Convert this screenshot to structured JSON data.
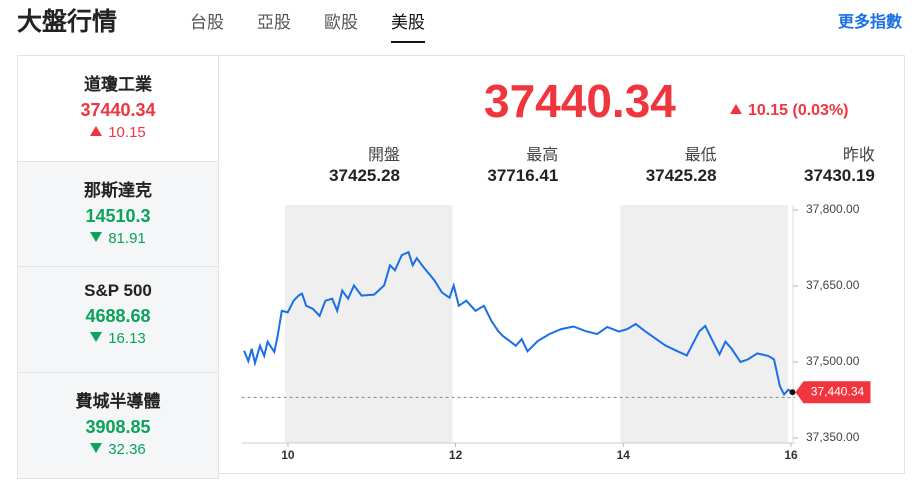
{
  "header": {
    "title": "大盤行情",
    "tabs": [
      "台股",
      "亞股",
      "歐股",
      "美股"
    ],
    "active_tab": 3,
    "more_link": "更多指數"
  },
  "colors": {
    "up": "#f0353e",
    "down": "#0aa35a"
  },
  "indices": [
    {
      "name": "道瓊工業",
      "value": 37440.34,
      "change": 10.15,
      "direction": "up"
    },
    {
      "name": "那斯達克",
      "value": 14510.3,
      "change": 81.91,
      "direction": "down"
    },
    {
      "name": "S&P 500",
      "value": 4688.68,
      "change": 16.13,
      "direction": "down"
    },
    {
      "name": "費城半導體",
      "value": 3908.85,
      "change": 32.36,
      "direction": "down"
    }
  ],
  "quote": {
    "price": 37440.34,
    "change": "10.15 (0.03%)",
    "direction": "up",
    "stats": [
      {
        "label": "開盤",
        "value": 37425.28
      },
      {
        "label": "最高",
        "value": 37716.41
      },
      {
        "label": "最低",
        "value": 37425.28
      },
      {
        "label": "昨收",
        "value": 37430.19
      }
    ]
  },
  "chart_data": {
    "type": "line",
    "color": "#1a6fe8",
    "x": [
      9.43,
      9.48,
      9.52,
      9.56,
      9.62,
      9.67,
      9.71,
      9.79,
      9.83,
      9.88,
      9.95,
      10.02,
      10.08,
      10.12,
      10.17,
      10.25,
      10.33,
      10.4,
      10.48,
      10.54,
      10.6,
      10.67,
      10.74,
      10.83,
      10.98,
      11.1,
      11.17,
      11.23,
      11.31,
      11.39,
      11.44,
      11.49,
      11.58,
      11.7,
      11.79,
      11.88,
      11.93,
      11.99,
      12.08,
      12.19,
      12.29,
      12.38,
      12.46,
      12.51,
      12.6,
      12.67,
      12.74,
      12.81,
      12.93,
      13.07,
      13.21,
      13.36,
      13.5,
      13.64,
      13.76,
      13.9,
      14,
      14.1,
      14.21,
      14.33,
      14.45,
      14.6,
      14.71,
      14.86,
      14.93,
      15,
      15.1,
      15.17,
      15.24,
      15.35,
      15.44,
      15.55,
      15.68,
      15.75,
      15.82,
      15.87,
      15.92,
      15.97
    ],
    "values": [
      37522,
      37502,
      37526,
      37498,
      37532,
      37512,
      37540,
      37520,
      37552,
      37601,
      37598,
      37621,
      37631,
      37635,
      37611,
      37605,
      37591,
      37621,
      37625,
      37601,
      37641,
      37625,
      37651,
      37631,
      37633,
      37651,
      37691,
      37681,
      37711,
      37717,
      37691,
      37705,
      37685,
      37661,
      37637,
      37627,
      37651,
      37611,
      37621,
      37601,
      37611,
      37581,
      37561,
      37552,
      37541,
      37532,
      37545,
      37521,
      37541,
      37555,
      37565,
      37570,
      37561,
      37555,
      37569,
      37560,
      37565,
      37575,
      37561,
      37547,
      37533,
      37521,
      37513,
      37561,
      37571,
      37547,
      37515,
      37540,
      37527,
      37500,
      37505,
      37517,
      37512,
      37505,
      37452,
      37436,
      37445,
      37440.34
    ],
    "xlim": [
      9.4,
      16
    ],
    "xticks": [
      10,
      12,
      14,
      16
    ],
    "ylim": [
      37340,
      37810
    ],
    "yticks": [
      {
        "value": 37350,
        "label": "37,350.00"
      },
      {
        "value": 37500,
        "label": "37,500.00"
      },
      {
        "value": 37650,
        "label": "37,650.00"
      },
      {
        "value": 37800,
        "label": "37,800.00"
      }
    ],
    "last_label": "37,440.34"
  }
}
